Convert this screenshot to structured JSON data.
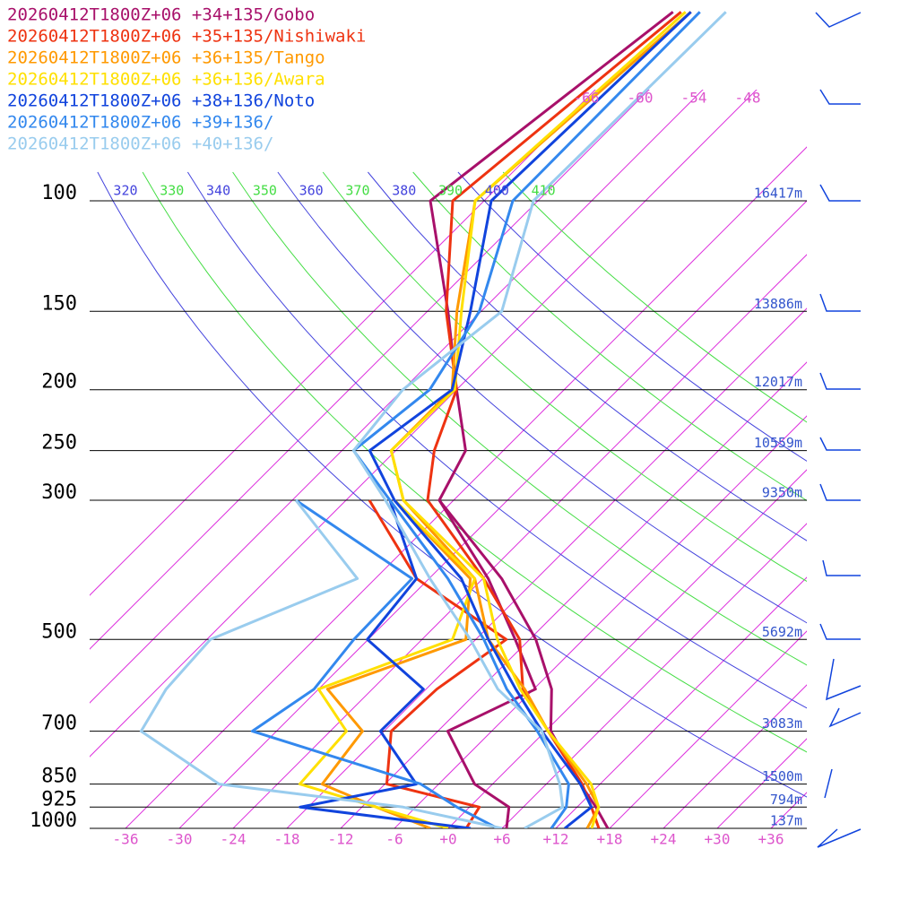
{
  "chart_data": {
    "type": "skewt",
    "pressure": [
      1000,
      925,
      850,
      700,
      600,
      500,
      400,
      300,
      250,
      200,
      150,
      100,
      50
    ],
    "yticks": [
      100,
      150,
      200,
      250,
      300,
      500,
      700,
      850,
      925,
      1000
    ],
    "height_labels": [
      "16417m",
      "13886m",
      "12017m",
      "10559m",
      "9350m",
      "5692m",
      "3083m",
      "1500m",
      "794m",
      "137m"
    ],
    "xticks": [
      -36,
      -30,
      -24,
      -18,
      -12,
      -6,
      {
        "value": 0,
        "label": "+0"
      },
      {
        "value": 6,
        "label": "+6"
      },
      {
        "value": 12,
        "label": "+12"
      },
      {
        "value": 18,
        "label": "+18"
      },
      {
        "value": 24,
        "label": "+24"
      },
      {
        "value": 30,
        "label": "+30"
      },
      {
        "value": 36,
        "label": "+36"
      }
    ],
    "upper_xticks": [
      -66,
      -60,
      -54,
      -48
    ],
    "theta_ticks": [
      320,
      330,
      340,
      350,
      360,
      370,
      380,
      390,
      400,
      410
    ],
    "series": [
      {
        "name": "20260412T1800Z+06 +34+135/Gobo",
        "color": "#a8106a",
        "temperature": [
          17.8,
          14.1,
          9.8,
          0.6,
          -4,
          -11.3,
          -21.9,
          -37.6,
          -40.2,
          -48,
          -57.7,
          -72,
          -66
        ],
        "dewpoint": [
          6.5,
          4.4,
          -2,
          -10.9,
          -5.8,
          -13.6,
          -23.4,
          -37.6,
          null,
          null,
          null,
          null,
          null
        ]
      },
      {
        "name": "20260412T1800Z+06 +35+135/Nishiwaki",
        "color": "#ee3311",
        "temperature": [
          16.8,
          13.6,
          10,
          0.3,
          -7.2,
          -13.1,
          -23.9,
          -38.9,
          -43.7,
          -48,
          -57.9,
          -69.5,
          -65.1
        ],
        "dewpoint": [
          2,
          1.1,
          -11.8,
          -17.2,
          -16.8,
          -14.6,
          -31.4,
          -45.4,
          null,
          null,
          null,
          null,
          null
        ]
      },
      {
        "name": "20260412T1800Z+06 +36+135/Tango",
        "color": "#ff9900",
        "temperature": [
          15.5,
          14.4,
          10.5,
          0.3,
          -7,
          -16.6,
          -24.9,
          -41.6,
          -48.5,
          -48.5,
          -56.7,
          -67,
          -64
        ],
        "dewpoint": [
          -2,
          -10.4,
          -19,
          -20.4,
          -29,
          -19.1,
          -25.4,
          -42.6,
          null,
          null,
          null,
          null,
          null
        ]
      },
      {
        "name": "20260412T1800Z+06 +36+136/Awara",
        "color": "#ffe000",
        "temperature": [
          16,
          14.4,
          11,
          0.3,
          -7.5,
          -15.6,
          -23.9,
          -41.6,
          -48.5,
          -48.2,
          -56.2,
          -67,
          -64.6
        ],
        "dewpoint": [
          0,
          -10.4,
          -21.5,
          -22.2,
          -30,
          -20.6,
          -24.9,
          -42.6,
          null,
          null,
          null,
          null,
          null
        ]
      },
      {
        "name": "20260412T1800Z+06 +38+136/Noto",
        "color": "#1144dd",
        "temperature": [
          13,
          13.6,
          9.8,
          -0.4,
          -8,
          -16.6,
          -26.4,
          -42.6,
          -50.9,
          -48.5,
          -55.2,
          -65.2,
          -64
        ],
        "dewpoint": [
          2.5,
          -18.9,
          -8.5,
          -18.4,
          -18.3,
          -30.1,
          -31.4,
          -43.1,
          null,
          null,
          null,
          null,
          null
        ]
      },
      {
        "name": "20260412T1800Z+06 +39+136/",
        "color": "#3388ee",
        "temperature": [
          11.5,
          10.8,
          8.5,
          -0.9,
          -9,
          -17.1,
          -27.9,
          -43.1,
          -52.7,
          -51,
          -54.2,
          -62.8,
          -63
        ],
        "dewpoint": [
          5.5,
          -1.4,
          -8,
          -32.7,
          -30.5,
          -31.6,
          -31.9,
          -53.6,
          null,
          null,
          null,
          null,
          null
        ]
      },
      {
        "name": "20260412T1800Z+06 +40+136/",
        "color": "#99ccee",
        "temperature": [
          8.5,
          10.4,
          7.5,
          -0.4,
          -10,
          -18.6,
          -29.9,
          -43.6,
          -52.7,
          -54,
          -51.7,
          -60.5,
          -60.1
        ],
        "dewpoint": [
          6,
          -7.4,
          -30.5,
          -45.1,
          -47,
          -47.6,
          -38,
          -53.6,
          null,
          null,
          null,
          null,
          null
        ]
      }
    ]
  }
}
